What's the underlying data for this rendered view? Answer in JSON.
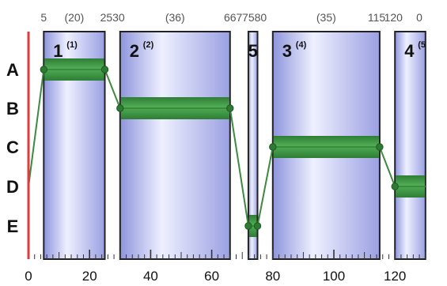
{
  "diagram": {
    "row_labels": [
      "A",
      "B",
      "C",
      "D",
      "E"
    ],
    "x_axis": {
      "min": 0,
      "max": 130,
      "major_ticks": [
        0,
        20,
        40,
        60,
        80,
        100,
        120
      ],
      "tick_labels": [
        "0",
        "20",
        "40",
        "60",
        "80",
        "100",
        "120"
      ]
    },
    "top_labels": [
      {
        "text": "5",
        "at": 5
      },
      {
        "text": "(20)",
        "at": 15
      },
      {
        "text": "2530",
        "at": 27.5
      },
      {
        "text": "(36)",
        "at": 48
      },
      {
        "text": "667",
        "at": 67
      },
      {
        "text": "7580",
        "at": 74
      },
      {
        "text": "(35)",
        "at": 97.5
      },
      {
        "text": "115",
        "at": 114
      },
      {
        "text": "120",
        "at": 119.5
      },
      {
        "text": "0",
        "at": 128
      }
    ],
    "stages": [
      {
        "number": "1",
        "sup": "(1)",
        "start": 5,
        "end": 25,
        "level": "A"
      },
      {
        "number": "2",
        "sup": "(2)",
        "start": 30,
        "end": 66,
        "level": "B"
      },
      {
        "number": "5",
        "sup": "",
        "start": 72,
        "end": 75,
        "level": "E"
      },
      {
        "number": "3",
        "sup": "(4)",
        "start": 80,
        "end": 115,
        "level": "C"
      },
      {
        "number": "4",
        "sup": "(5",
        "start": 120,
        "end": 130,
        "level": "D"
      }
    ],
    "path_points": [
      {
        "x": 0,
        "row": "D"
      },
      {
        "x": 5,
        "row": "A"
      },
      {
        "x": 25,
        "row": "A"
      },
      {
        "x": 30,
        "row": "B"
      },
      {
        "x": 66,
        "row": "B"
      },
      {
        "x": 72,
        "row": "E"
      },
      {
        "x": 75,
        "row": "E"
      },
      {
        "x": 80,
        "row": "C"
      },
      {
        "x": 115,
        "row": "C"
      },
      {
        "x": 120,
        "row": "D"
      },
      {
        "x": 130,
        "row": "D"
      }
    ],
    "colors": {
      "bar": "#3f9a45",
      "line": "#3d8a3f",
      "box_edge": "#222222",
      "box_fill_light": "#eef0ff",
      "box_fill_dark": "#8e95dc",
      "left_axis": "#e23b3b"
    }
  }
}
